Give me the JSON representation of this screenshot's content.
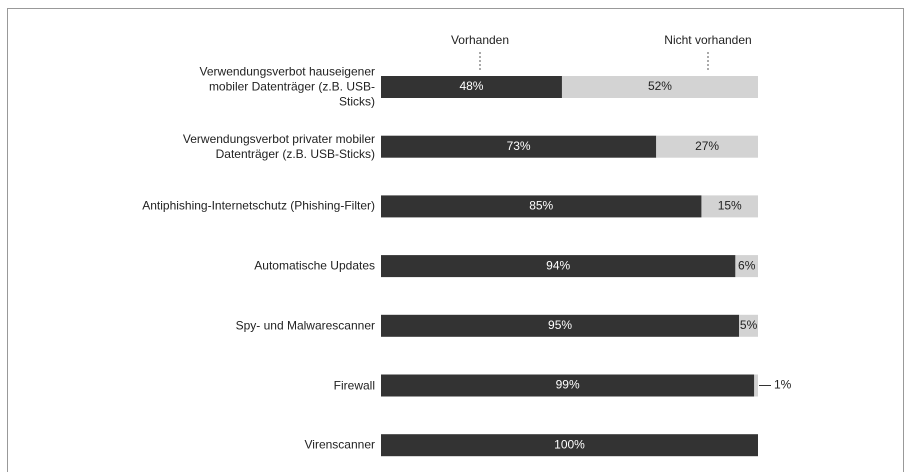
{
  "chart_data": {
    "type": "stacked-bar-horizontal",
    "categories": [
      "Verwendungsverbot hauseigener mobiler Datenträger (z.B. USB-Sticks)",
      "Verwendungsverbot privater mobiler Datenträger (z.B. USB-Sticks)",
      "Antiphishing-Internetschutz (Phishing-Filter)",
      "Automatische Updates",
      "Spy- und Malwarescanner",
      "Firewall",
      "Virenscanner"
    ],
    "series": [
      {
        "name": "Vorhanden",
        "color": "#333333",
        "values": [
          48,
          73,
          85,
          94,
          95,
          99,
          100
        ],
        "value_labels": [
          "48%",
          "73%",
          "85%",
          "94%",
          "95%",
          "99%",
          "100%"
        ]
      },
      {
        "name": "Nicht vorhanden",
        "color": "#d3d3d3",
        "values": [
          52,
          27,
          15,
          6,
          5,
          1,
          0
        ],
        "value_labels": [
          "52%",
          "27%",
          "15%",
          "6%",
          "5%",
          "1%",
          null
        ]
      }
    ],
    "xlim": [
      0,
      100
    ]
  }
}
